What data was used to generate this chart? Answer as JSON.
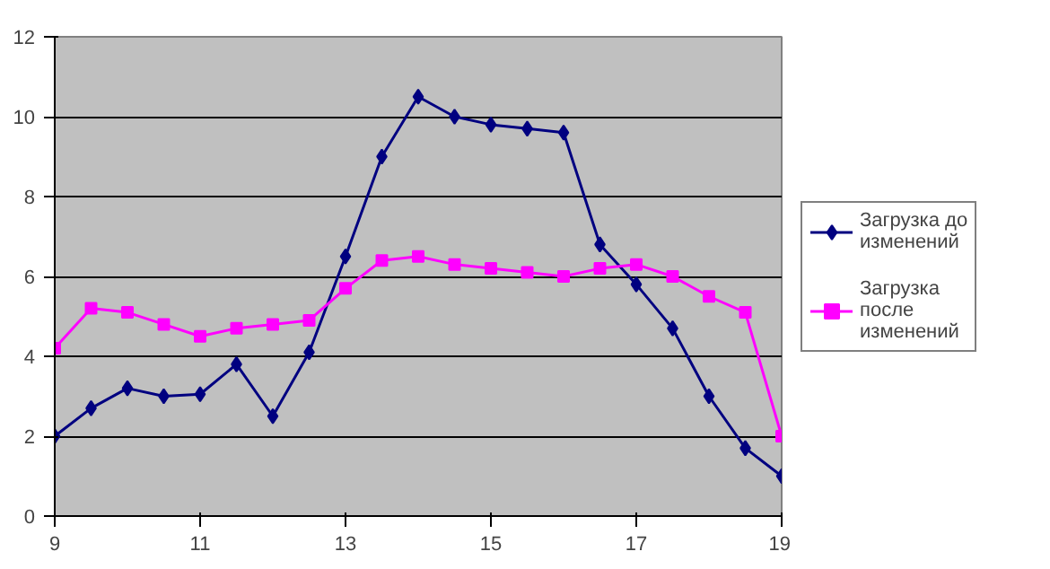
{
  "chart_data": {
    "type": "line",
    "x": [
      9,
      9.5,
      10,
      10.5,
      11,
      11.5,
      12,
      12.5,
      13,
      13.5,
      14,
      14.5,
      15,
      15.5,
      16,
      16.5,
      17,
      17.5,
      18,
      18.5,
      19
    ],
    "series": [
      {
        "name": "Загрузка до изменений",
        "color": "#000080",
        "marker": "diamond",
        "values": [
          2.0,
          2.7,
          3.2,
          3.0,
          3.05,
          3.8,
          2.5,
          4.1,
          6.5,
          9.0,
          10.5,
          10.0,
          9.8,
          9.7,
          9.6,
          6.8,
          5.8,
          4.7,
          3.0,
          1.7,
          1.0
        ]
      },
      {
        "name": "Загрузка после изменений",
        "color": "#ff00ff",
        "marker": "square",
        "values": [
          4.2,
          5.2,
          5.1,
          4.8,
          4.5,
          4.7,
          4.8,
          4.9,
          5.7,
          6.4,
          6.5,
          6.3,
          6.2,
          6.1,
          6.0,
          6.2,
          6.3,
          6.0,
          5.5,
          5.1,
          2.0
        ]
      }
    ],
    "xlim": [
      9,
      19
    ],
    "xticks": [
      9,
      11,
      13,
      15,
      17,
      19
    ],
    "ylim": [
      0,
      12
    ],
    "yticks": [
      0,
      2,
      4,
      6,
      8,
      10,
      12
    ],
    "grid": "y",
    "legend": "right",
    "line_style": "solid"
  }
}
